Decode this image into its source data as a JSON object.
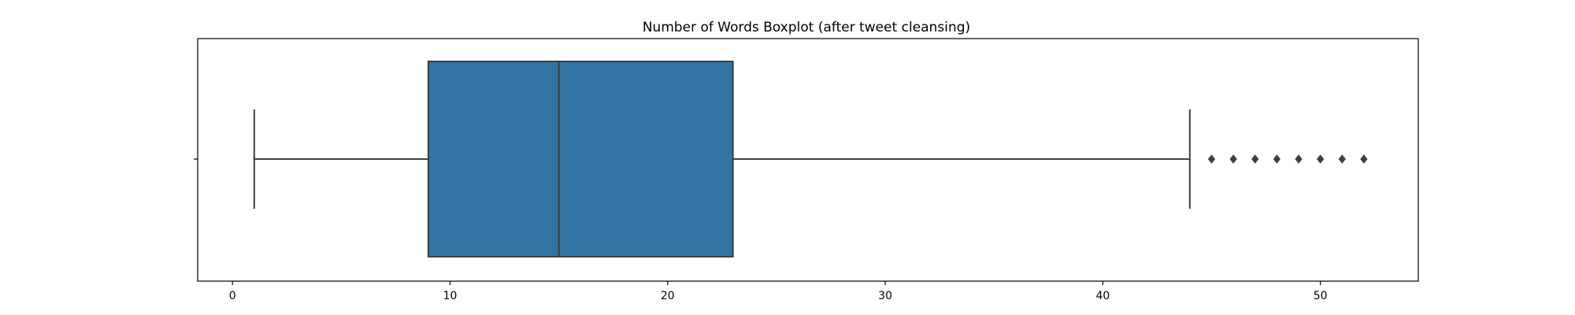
{
  "chart_data": {
    "type": "box",
    "title": "Number of Words Boxplot (after tweet cleansing)",
    "xlabel": "",
    "ylabel": "",
    "orientation": "horizontal",
    "xlim": [
      -1.6,
      54.5
    ],
    "x_ticks": [
      0,
      10,
      20,
      30,
      40,
      50
    ],
    "grid": false,
    "box_color": "#3274a1",
    "line_color": "#3f3f3f",
    "stats": {
      "whisker_low": 1,
      "q1": 9,
      "median": 15,
      "q3": 23,
      "whisker_high": 44
    },
    "outliers": [
      45,
      46,
      47,
      48,
      49,
      50,
      51,
      52
    ]
  }
}
